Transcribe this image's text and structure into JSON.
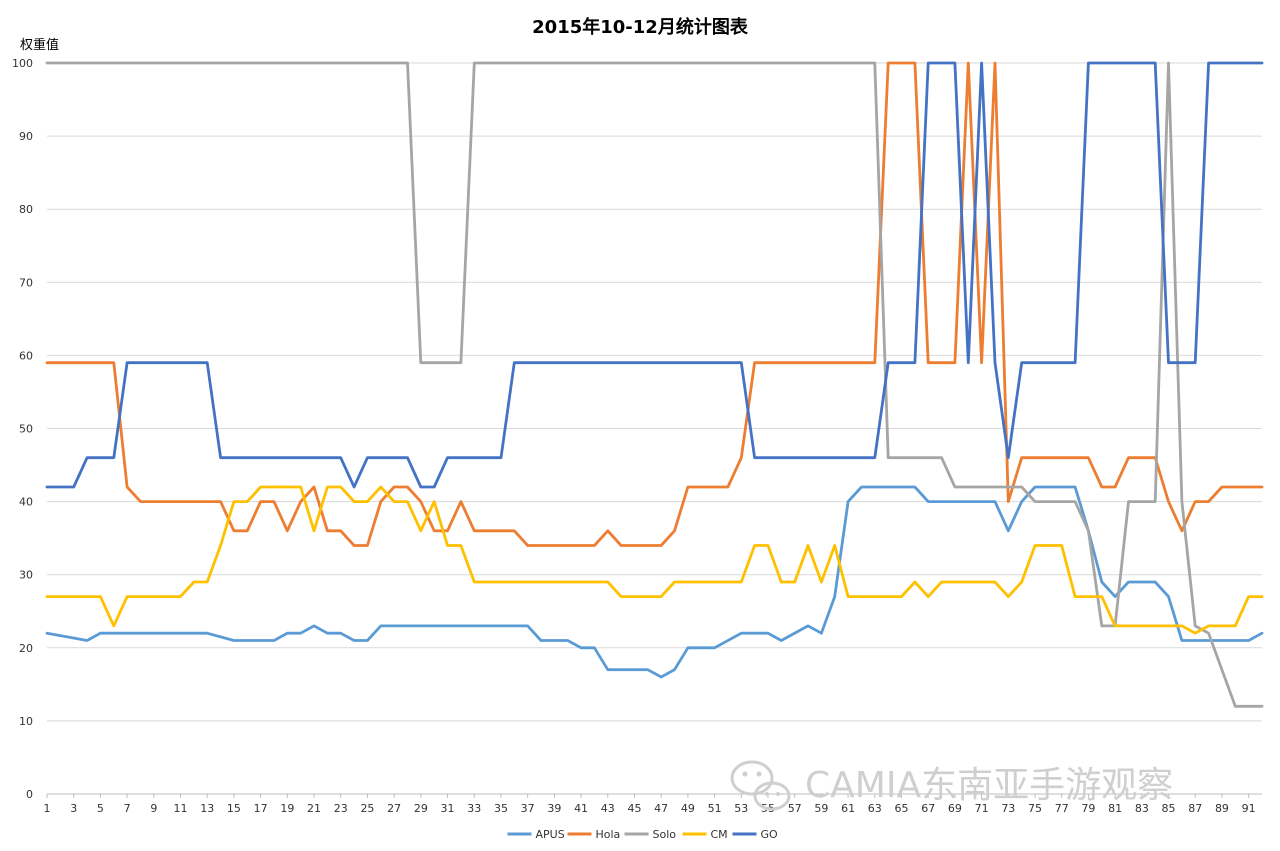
{
  "watermark": "CAMIA东南亚手游观察",
  "colors": {
    "grid": "#d9d9d9",
    "axis": "#bfbfbf"
  },
  "chart_data": {
    "type": "line",
    "title": "2015年10-12月统计图表",
    "xlabel": "",
    "ylabel": "权重值",
    "ylim": [
      0,
      100
    ],
    "yticks": [
      0,
      10,
      20,
      30,
      40,
      50,
      60,
      70,
      80,
      90,
      100
    ],
    "xrange": [
      1,
      92
    ],
    "xticks": [
      1,
      3,
      5,
      7,
      9,
      11,
      13,
      15,
      17,
      19,
      21,
      23,
      25,
      27,
      29,
      31,
      33,
      35,
      37,
      39,
      41,
      43,
      45,
      47,
      49,
      51,
      53,
      55,
      57,
      59,
      61,
      63,
      65,
      67,
      69,
      71,
      73,
      75,
      77,
      79,
      81,
      83,
      85,
      87,
      89,
      91
    ],
    "grid": "horizontal",
    "legend_position": "bottom",
    "series": [
      {
        "name": "APUS",
        "color": "#5b9bd5",
        "points": [
          [
            1,
            22
          ],
          [
            5,
            22
          ],
          [
            4,
            21
          ],
          [
            13,
            22
          ],
          [
            15,
            21
          ],
          [
            18,
            21
          ],
          [
            19,
            22
          ],
          [
            20,
            22
          ],
          [
            21,
            23
          ],
          [
            22,
            22
          ],
          [
            23,
            22
          ],
          [
            24,
            21
          ],
          [
            25,
            21
          ],
          [
            26,
            23
          ],
          [
            37,
            23
          ],
          [
            38,
            21
          ],
          [
            40,
            21
          ],
          [
            41,
            20
          ],
          [
            42,
            20
          ],
          [
            43,
            17
          ],
          [
            46,
            17
          ],
          [
            47,
            16
          ],
          [
            48,
            17
          ],
          [
            49,
            20
          ],
          [
            51,
            20
          ],
          [
            53,
            22
          ],
          [
            55,
            22
          ],
          [
            56,
            21
          ],
          [
            58,
            23
          ],
          [
            59,
            22
          ],
          [
            60,
            27
          ],
          [
            61,
            40
          ],
          [
            62,
            42
          ],
          [
            66,
            42
          ],
          [
            67,
            40
          ],
          [
            72,
            40
          ],
          [
            73,
            36
          ],
          [
            74,
            40
          ],
          [
            75,
            42
          ],
          [
            78,
            42
          ],
          [
            79,
            36
          ],
          [
            80,
            29
          ],
          [
            81,
            27
          ],
          [
            82,
            29
          ],
          [
            84,
            29
          ],
          [
            85,
            27
          ],
          [
            86,
            21
          ],
          [
            91,
            21
          ],
          [
            92,
            22
          ]
        ]
      },
      {
        "name": "Hola",
        "color": "#ed7d31",
        "points": [
          [
            1,
            59
          ],
          [
            6,
            59
          ],
          [
            7,
            42
          ],
          [
            8,
            40
          ],
          [
            14,
            40
          ],
          [
            15,
            36
          ],
          [
            16,
            36
          ],
          [
            17,
            40
          ],
          [
            18,
            40
          ],
          [
            19,
            36
          ],
          [
            20,
            40
          ],
          [
            21,
            42
          ],
          [
            22,
            36
          ],
          [
            23,
            36
          ],
          [
            24,
            34
          ],
          [
            25,
            34
          ],
          [
            26,
            40
          ],
          [
            27,
            42
          ],
          [
            28,
            42
          ],
          [
            29,
            40
          ],
          [
            30,
            36
          ],
          [
            31,
            36
          ],
          [
            32,
            40
          ],
          [
            33,
            36
          ],
          [
            36,
            36
          ],
          [
            37,
            34
          ],
          [
            42,
            34
          ],
          [
            43,
            36
          ],
          [
            44,
            34
          ],
          [
            47,
            34
          ],
          [
            48,
            36
          ],
          [
            49,
            42
          ],
          [
            52,
            42
          ],
          [
            53,
            46
          ],
          [
            54,
            59
          ],
          [
            63,
            59
          ],
          [
            64,
            100
          ],
          [
            66,
            100
          ],
          [
            67,
            59
          ],
          [
            69,
            59
          ],
          [
            70,
            100
          ],
          [
            71,
            59
          ],
          [
            72,
            100
          ],
          [
            73,
            40
          ],
          [
            74,
            46
          ],
          [
            79,
            46
          ],
          [
            80,
            42
          ],
          [
            81,
            42
          ],
          [
            82,
            46
          ],
          [
            84,
            46
          ],
          [
            85,
            40
          ],
          [
            86,
            36
          ],
          [
            87,
            40
          ],
          [
            88,
            40
          ],
          [
            89,
            42
          ],
          [
            92,
            42
          ]
        ]
      },
      {
        "name": "Solo",
        "color": "#a5a5a5",
        "points": [
          [
            1,
            100
          ],
          [
            28,
            100
          ],
          [
            29,
            59
          ],
          [
            32,
            59
          ],
          [
            33,
            100
          ],
          [
            63,
            100
          ],
          [
            64,
            46
          ],
          [
            67,
            46
          ],
          [
            68,
            46
          ],
          [
            69,
            42
          ],
          [
            73,
            42
          ],
          [
            74,
            42
          ],
          [
            75,
            40
          ],
          [
            78,
            40
          ],
          [
            79,
            36
          ],
          [
            80,
            23
          ],
          [
            81,
            23
          ],
          [
            82,
            40
          ],
          [
            84,
            40
          ],
          [
            85,
            100
          ],
          [
            86,
            40
          ],
          [
            87,
            23
          ],
          [
            88,
            22
          ],
          [
            89,
            17
          ],
          [
            90,
            12
          ],
          [
            92,
            12
          ]
        ]
      },
      {
        "name": "CM",
        "color": "#ffc000",
        "points": [
          [
            1,
            27
          ],
          [
            5,
            27
          ],
          [
            6,
            23
          ],
          [
            7,
            27
          ],
          [
            11,
            27
          ],
          [
            12,
            29
          ],
          [
            13,
            29
          ],
          [
            14,
            34
          ],
          [
            15,
            40
          ],
          [
            16,
            40
          ],
          [
            17,
            42
          ],
          [
            20,
            42
          ],
          [
            21,
            36
          ],
          [
            22,
            42
          ],
          [
            23,
            42
          ],
          [
            24,
            40
          ],
          [
            25,
            40
          ],
          [
            26,
            42
          ],
          [
            27,
            40
          ],
          [
            28,
            40
          ],
          [
            29,
            36
          ],
          [
            30,
            40
          ],
          [
            31,
            34
          ],
          [
            32,
            34
          ],
          [
            33,
            29
          ],
          [
            43,
            29
          ],
          [
            44,
            27
          ],
          [
            47,
            27
          ],
          [
            48,
            29
          ],
          [
            53,
            29
          ],
          [
            54,
            34
          ],
          [
            55,
            34
          ],
          [
            56,
            29
          ],
          [
            57,
            29
          ],
          [
            58,
            34
          ],
          [
            59,
            29
          ],
          [
            60,
            34
          ],
          [
            61,
            27
          ],
          [
            65,
            27
          ],
          [
            66,
            29
          ],
          [
            67,
            27
          ],
          [
            68,
            29
          ],
          [
            72,
            29
          ],
          [
            73,
            27
          ],
          [
            74,
            29
          ],
          [
            75,
            34
          ],
          [
            77,
            34
          ],
          [
            78,
            27
          ],
          [
            80,
            27
          ],
          [
            81,
            23
          ],
          [
            86,
            23
          ],
          [
            87,
            22
          ],
          [
            88,
            23
          ],
          [
            90,
            23
          ],
          [
            91,
            27
          ],
          [
            92,
            27
          ]
        ]
      },
      {
        "name": "GO",
        "color": "#4472c4",
        "points": [
          [
            1,
            42
          ],
          [
            3,
            42
          ],
          [
            4,
            46
          ],
          [
            6,
            46
          ],
          [
            7,
            59
          ],
          [
            13,
            59
          ],
          [
            14,
            46
          ],
          [
            23,
            46
          ],
          [
            24,
            42
          ],
          [
            25,
            46
          ],
          [
            28,
            46
          ],
          [
            29,
            42
          ],
          [
            30,
            42
          ],
          [
            31,
            46
          ],
          [
            35,
            46
          ],
          [
            36,
            59
          ],
          [
            53,
            59
          ],
          [
            54,
            46
          ],
          [
            63,
            46
          ],
          [
            64,
            59
          ],
          [
            66,
            59
          ],
          [
            67,
            100
          ],
          [
            69,
            100
          ],
          [
            70,
            59
          ],
          [
            71,
            100
          ],
          [
            72,
            59
          ],
          [
            73,
            46
          ],
          [
            74,
            59
          ],
          [
            78,
            59
          ],
          [
            79,
            100
          ],
          [
            84,
            100
          ],
          [
            85,
            59
          ],
          [
            87,
            59
          ],
          [
            88,
            100
          ],
          [
            92,
            100
          ]
        ]
      }
    ]
  }
}
